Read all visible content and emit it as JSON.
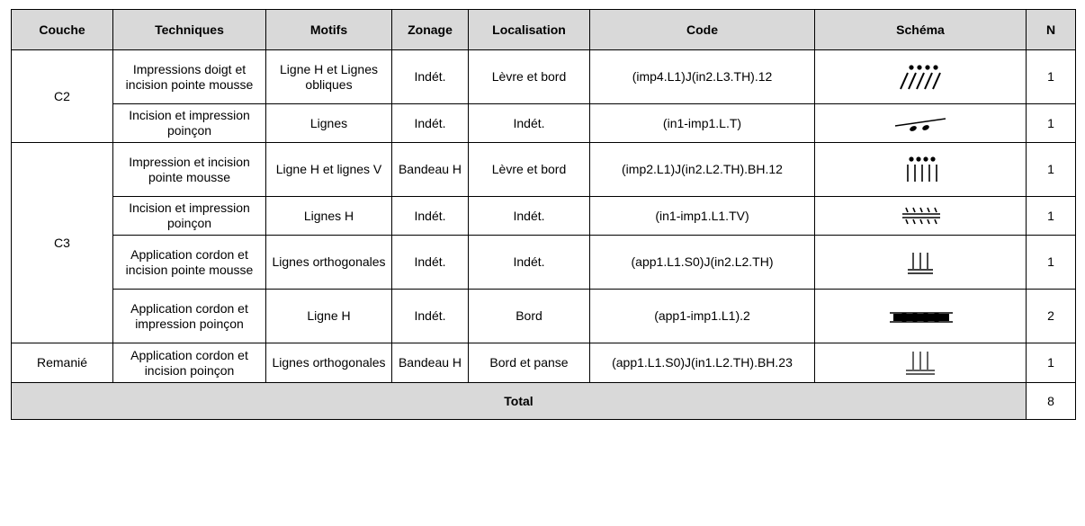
{
  "table": {
    "header": [
      "Couche",
      "Techniques",
      "Motifs",
      "Zonage",
      "Localisation",
      "Code",
      "Schéma",
      "N"
    ],
    "groups": [
      {
        "couche": "C2",
        "rows": [
          [
            "Impressions doigt et incision pointe mousse",
            "Ligne H et Lignes obliques",
            "Indét.",
            "Lèvre et bord",
            "(imp4.L1)J(in2.L3.TH).12",
            1
          ],
          [
            "Incision et impression poinçon",
            "Lignes",
            "Indét.",
            "Indét.",
            "(in1-imp1.L.T)",
            1
          ]
        ]
      },
      {
        "couche": "C3",
        "rows": [
          [
            "Impression et incision pointe mousse",
            "Ligne H et lignes V",
            "Bandeau H",
            "Lèvre et bord",
            "(imp2.L1)J(in2.L2.TH).BH.12",
            1
          ],
          [
            "Incision et impression poinçon",
            "Lignes H",
            "Indét.",
            "Indét.",
            "(in1-imp1.L1.TV)",
            1
          ],
          [
            "Application cordon et incision pointe mousse",
            "Lignes orthogonales",
            "Indét.",
            "Indét.",
            "(app1.L1.S0)J(in2.L2.TH)",
            1
          ],
          [
            "Application cordon et impression poinçon",
            "Ligne H",
            "Indét.",
            "Bord",
            "(app1-imp1.L1).2",
            2
          ]
        ]
      },
      {
        "couche": "Remanié",
        "rows": [
          [
            "Application cordon et incision poinçon",
            "Lignes orthogonales",
            "Bandeau H",
            "Bord et panse",
            "(app1.L1.S0)J(in1.L2.TH).BH.23",
            1
          ]
        ]
      }
    ],
    "total": {
      "label": "Total",
      "value": 8
    }
  }
}
